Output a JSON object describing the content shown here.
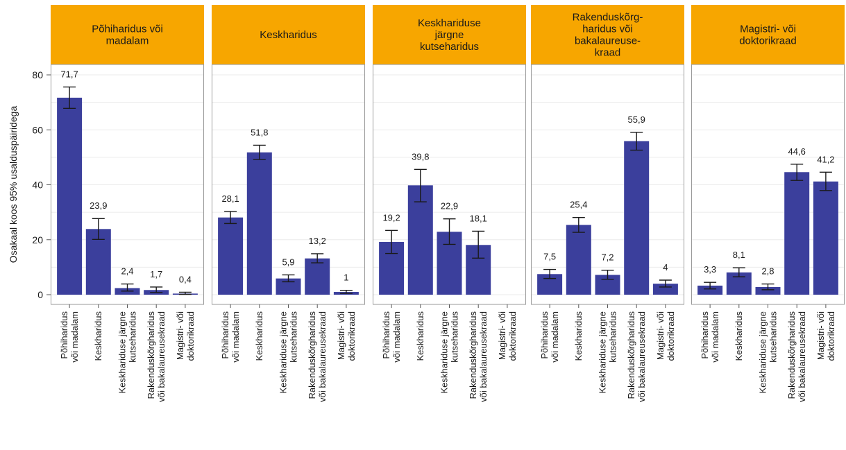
{
  "chart_data": {
    "type": "bar",
    "ylabel": "Osakaal koos 95% usalduspäiridega",
    "ylim": [
      0,
      80
    ],
    "yticks": [
      "0",
      "20",
      "40",
      "60",
      "80"
    ],
    "categories": [
      [
        "Põhiharidus",
        "või madalam"
      ],
      [
        "Keskharidus"
      ],
      [
        "Keskhariduse järgne",
        "kutseharidus"
      ],
      [
        "Rakenduskõrgharidus",
        "või bakalaureusekraad"
      ],
      [
        "Magistri- või",
        "doktorikraad"
      ]
    ],
    "panels": [
      {
        "title": [
          "Põhiharidus või",
          "madalam"
        ],
        "values": [
          71.7,
          23.9,
          2.4,
          1.7,
          0.4
        ],
        "labels": [
          "71,7",
          "23,9",
          "2,4",
          "1,7",
          "0,4"
        ],
        "err_low": [
          67.8,
          20.1,
          1.3,
          0.8,
          0.1
        ],
        "err_high": [
          75.6,
          27.7,
          3.9,
          2.8,
          0.9
        ]
      },
      {
        "title": [
          "Keskharidus"
        ],
        "values": [
          28.1,
          51.8,
          5.9,
          13.2,
          1.0
        ],
        "labels": [
          "28,1",
          "51,8",
          "5,9",
          "13,2",
          "1"
        ],
        "err_low": [
          25.9,
          49.2,
          4.7,
          11.6,
          0.5
        ],
        "err_high": [
          30.3,
          54.4,
          7.2,
          14.9,
          1.6
        ]
      },
      {
        "title": [
          "Keskhariduse",
          "järgne",
          "kutseharidus"
        ],
        "values": [
          19.2,
          39.8,
          22.9,
          18.1,
          null
        ],
        "labels": [
          "19,2",
          "39,8",
          "22,9",
          "18,1",
          ""
        ],
        "err_low": [
          15.0,
          33.8,
          18.3,
          13.3,
          null
        ],
        "err_high": [
          23.4,
          45.6,
          27.6,
          23.1,
          null
        ]
      },
      {
        "title": [
          "Rakenduskõrg-",
          "haridus või",
          "bakalaureuse-",
          "kraad"
        ],
        "values": [
          7.5,
          25.4,
          7.2,
          55.9,
          4.0
        ],
        "labels": [
          "7,5",
          "25,4",
          "7,2",
          "55,9",
          "4"
        ],
        "err_low": [
          5.9,
          22.7,
          5.6,
          52.6,
          2.8
        ],
        "err_high": [
          9.2,
          28.1,
          8.9,
          59.1,
          5.3
        ]
      },
      {
        "title": [
          "Magistri- või",
          "doktorikraad"
        ],
        "values": [
          3.3,
          8.1,
          2.8,
          44.6,
          41.2
        ],
        "labels": [
          "3,3",
          "8,1",
          "2,8",
          "44,6",
          "41,2"
        ],
        "err_low": [
          2.1,
          6.5,
          1.8,
          41.6,
          37.9
        ],
        "err_high": [
          4.5,
          9.8,
          3.9,
          47.5,
          44.6
        ]
      }
    ],
    "colors": {
      "strip": "#f7a600",
      "bar": "#3b3f9c"
    }
  }
}
